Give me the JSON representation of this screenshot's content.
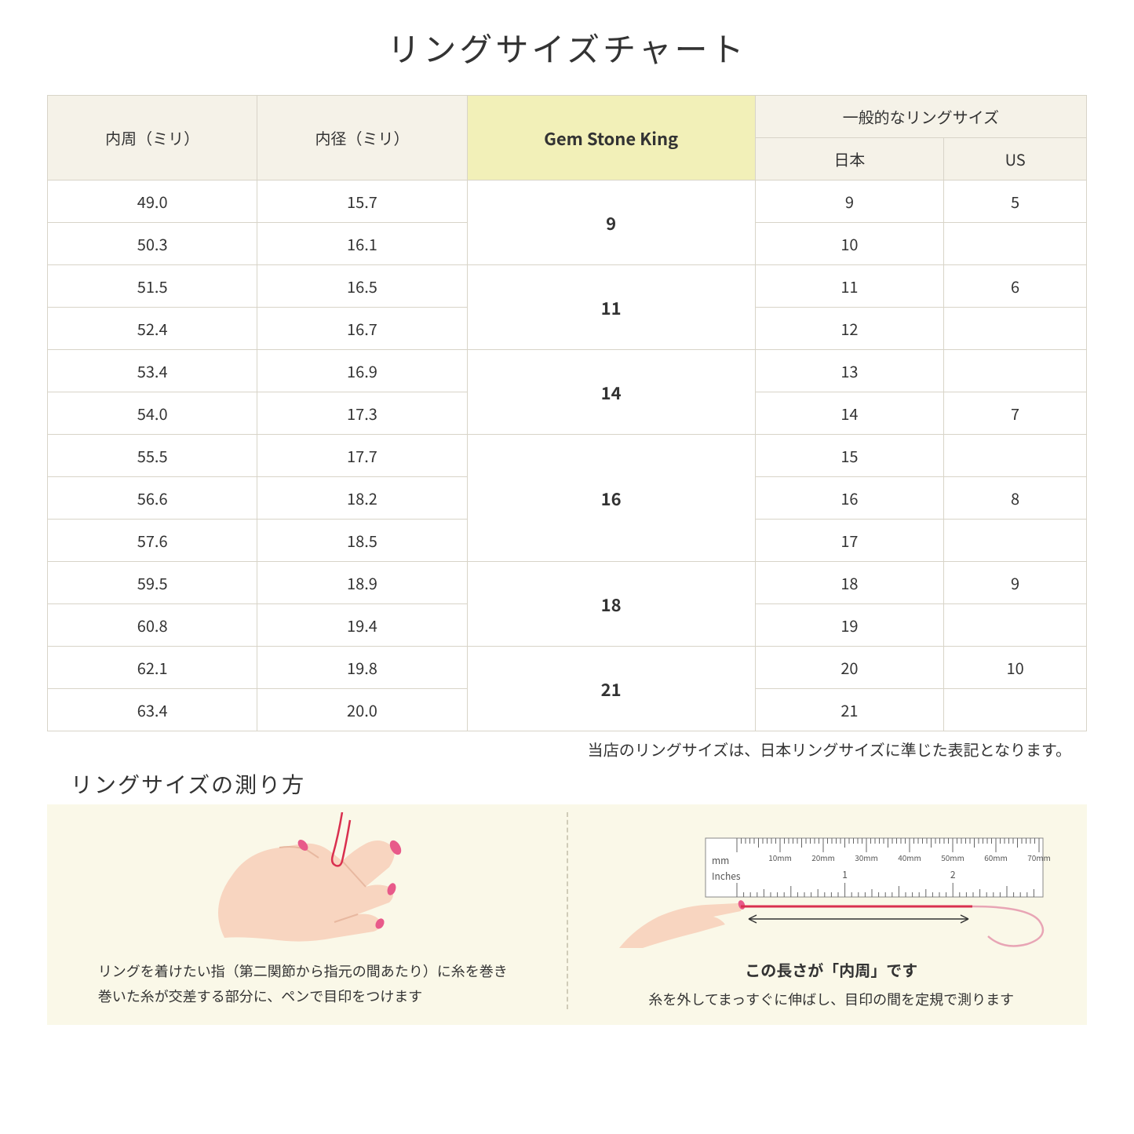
{
  "title": "リングサイズチャート",
  "table": {
    "headers": {
      "circumference": "内周（ミリ）",
      "diameter": "内径（ミリ）",
      "gsk": "Gem Stone King",
      "general": "一般的なリングサイズ",
      "japan": "日本",
      "us": "US"
    },
    "groups": [
      {
        "gsk": "9",
        "rows": [
          {
            "c": "49.0",
            "d": "15.7",
            "jp": "9",
            "us": "5"
          },
          {
            "c": "50.3",
            "d": "16.1",
            "jp": "10",
            "us": ""
          }
        ]
      },
      {
        "gsk": "11",
        "rows": [
          {
            "c": "51.5",
            "d": "16.5",
            "jp": "11",
            "us": "6"
          },
          {
            "c": "52.4",
            "d": "16.7",
            "jp": "12",
            "us": ""
          }
        ]
      },
      {
        "gsk": "14",
        "rows": [
          {
            "c": "53.4",
            "d": "16.9",
            "jp": "13",
            "us": ""
          },
          {
            "c": "54.0",
            "d": "17.3",
            "jp": "14",
            "us": "7"
          }
        ]
      },
      {
        "gsk": "16",
        "rows": [
          {
            "c": "55.5",
            "d": "17.7",
            "jp": "15",
            "us": ""
          },
          {
            "c": "56.6",
            "d": "18.2",
            "jp": "16",
            "us": "8"
          },
          {
            "c": "57.6",
            "d": "18.5",
            "jp": "17",
            "us": ""
          }
        ]
      },
      {
        "gsk": "18",
        "rows": [
          {
            "c": "59.5",
            "d": "18.9",
            "jp": "18",
            "us": "9"
          },
          {
            "c": "60.8",
            "d": "19.4",
            "jp": "19",
            "us": ""
          }
        ]
      },
      {
        "gsk": "21",
        "rows": [
          {
            "c": "62.1",
            "d": "19.8",
            "jp": "20",
            "us": "10"
          },
          {
            "c": "63.4",
            "d": "20.0",
            "jp": "21",
            "us": ""
          }
        ]
      }
    ]
  },
  "note": "当店のリングサイズは、日本リングサイズに準じた表記となります。",
  "howto": {
    "title": "リングサイズの測り方",
    "left_text_1": "リングを着けたい指（第二関節から指元の間あたり）に糸を巻き",
    "left_text_2": "巻いた糸が交差する部分に、ペンで目印をつけます",
    "right_label": "この長さが「内周」です",
    "right_text": "糸を外してまっすぐに伸ばし、目印の間を定規で測ります",
    "ruler": {
      "mm_label": "mm",
      "in_label": "Inches",
      "mm_marks": [
        "10mm",
        "20mm",
        "30mm",
        "40mm",
        "50mm",
        "60mm",
        "70mm"
      ],
      "in_marks": [
        "1",
        "2"
      ]
    }
  },
  "colors": {
    "header_bg": "#f5f2e8",
    "gsk_bg": "#f2f0b8",
    "howto_bg": "#faf8e8",
    "border": "#d8d4c8",
    "skin": "#f8d5c0",
    "skin_dark": "#e8b8a0",
    "nail": "#e85a8a",
    "thread": "#d9304f"
  }
}
